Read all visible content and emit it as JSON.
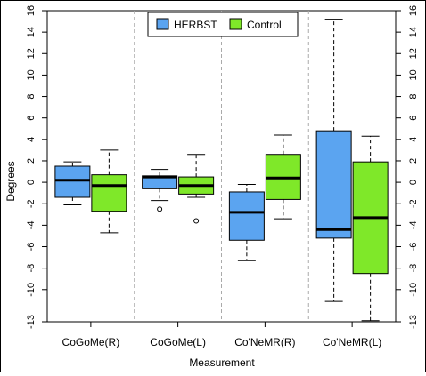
{
  "chart_data": {
    "type": "boxplot",
    "title": "",
    "xlabel": "Measurement",
    "ylabel": "Degrees",
    "ylim": [
      -13,
      16
    ],
    "yticks": [
      16,
      14,
      12,
      10,
      8,
      6,
      4,
      2,
      0,
      -2,
      -4,
      -6,
      -8,
      -10,
      -13
    ],
    "categories": [
      "CoGoMe(R)",
      "CoGoMe(L)",
      "Co'NeMR(R)",
      "Co'NeMR(L)"
    ],
    "legend": {
      "placement": "top-center"
    },
    "series": [
      {
        "name": "HERBST",
        "color": "#5BA4F0",
        "boxes": [
          {
            "whisker_low": -2.1,
            "q1": -1.4,
            "median": 0.2,
            "q3": 1.5,
            "whisker_high": 1.9,
            "outliers": []
          },
          {
            "whisker_low": -1.7,
            "q1": -0.6,
            "median": 0.5,
            "q3": 0.6,
            "whisker_high": 1.2,
            "outliers": [
              -2.5
            ]
          },
          {
            "whisker_low": -7.3,
            "q1": -5.4,
            "median": -2.8,
            "q3": -0.9,
            "whisker_high": -0.2,
            "outliers": []
          },
          {
            "whisker_low": -11.1,
            "q1": -5.2,
            "median": -4.4,
            "q3": 4.8,
            "whisker_high": 15.2,
            "outliers": []
          }
        ]
      },
      {
        "name": "Control",
        "color": "#7FE829",
        "boxes": [
          {
            "whisker_low": -4.7,
            "q1": -2.7,
            "median": -0.3,
            "q3": 0.7,
            "whisker_high": 3.0,
            "outliers": []
          },
          {
            "whisker_low": -1.4,
            "q1": -1.1,
            "median": -0.3,
            "q3": 0.5,
            "whisker_high": 2.6,
            "outliers": [
              -3.6
            ]
          },
          {
            "whisker_low": -3.4,
            "q1": -1.6,
            "median": 0.4,
            "q3": 2.6,
            "whisker_high": 4.4,
            "outliers": []
          },
          {
            "whisker_low": -12.9,
            "q1": -8.5,
            "median": -3.3,
            "q3": 1.9,
            "whisker_high": 4.3,
            "outliers": []
          }
        ]
      }
    ]
  }
}
